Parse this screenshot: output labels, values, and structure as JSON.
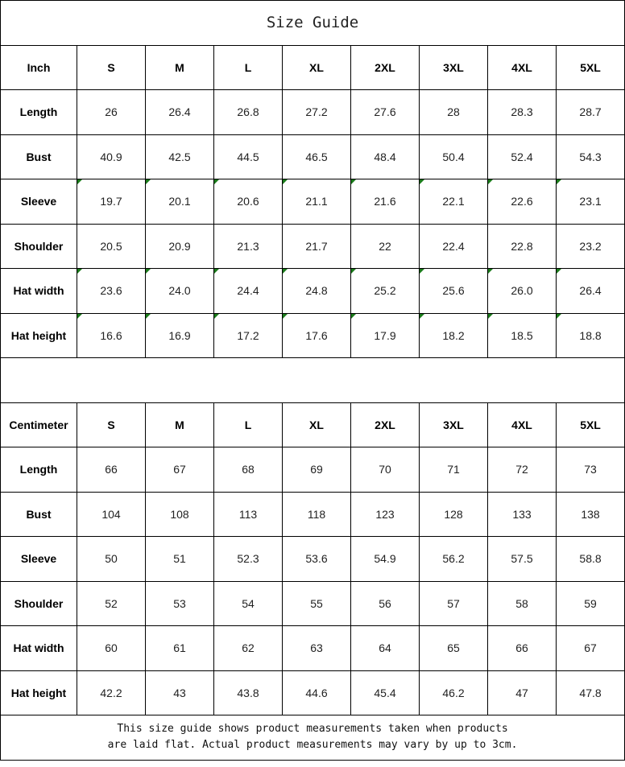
{
  "title": "Size Guide",
  "sizes": [
    "S",
    "M",
    "L",
    "XL",
    "2XL",
    "3XL",
    "4XL",
    "5XL"
  ],
  "flag_color": "#1a7a1a",
  "tables": [
    {
      "unit": "Inch",
      "flagged_rows": [
        "Sleeve",
        "Hat width",
        "Hat height"
      ],
      "rows": [
        {
          "label": "Length",
          "values": [
            "26",
            "26.4",
            "26.8",
            "27.2",
            "27.6",
            "28",
            "28.3",
            "28.7"
          ]
        },
        {
          "label": "Bust",
          "values": [
            "40.9",
            "42.5",
            "44.5",
            "46.5",
            "48.4",
            "50.4",
            "52.4",
            "54.3"
          ]
        },
        {
          "label": "Sleeve",
          "values": [
            "19.7",
            "20.1",
            "20.6",
            "21.1",
            "21.6",
            "22.1",
            "22.6",
            "23.1"
          ]
        },
        {
          "label": "Shoulder",
          "values": [
            "20.5",
            "20.9",
            "21.3",
            "21.7",
            "22",
            "22.4",
            "22.8",
            "23.2"
          ]
        },
        {
          "label": "Hat width",
          "values": [
            "23.6",
            "24.0",
            "24.4",
            "24.8",
            "25.2",
            "25.6",
            "26.0",
            "26.4"
          ]
        },
        {
          "label": "Hat height",
          "values": [
            "16.6",
            "16.9",
            "17.2",
            "17.6",
            "17.9",
            "18.2",
            "18.5",
            "18.8"
          ]
        }
      ]
    },
    {
      "unit": "Centimeter",
      "flagged_rows": [],
      "rows": [
        {
          "label": "Length",
          "values": [
            "66",
            "67",
            "68",
            "69",
            "70",
            "71",
            "72",
            "73"
          ]
        },
        {
          "label": "Bust",
          "values": [
            "104",
            "108",
            "113",
            "118",
            "123",
            "128",
            "133",
            "138"
          ]
        },
        {
          "label": "Sleeve",
          "values": [
            "50",
            "51",
            "52.3",
            "53.6",
            "54.9",
            "56.2",
            "57.5",
            "58.8"
          ]
        },
        {
          "label": "Shoulder",
          "values": [
            "52",
            "53",
            "54",
            "55",
            "56",
            "57",
            "58",
            "59"
          ]
        },
        {
          "label": "Hat width",
          "values": [
            "60",
            "61",
            "62",
            "63",
            "64",
            "65",
            "66",
            "67"
          ]
        },
        {
          "label": "Hat height",
          "values": [
            "42.2",
            "43",
            "43.8",
            "44.6",
            "45.4",
            "46.2",
            "47",
            "47.8"
          ]
        }
      ]
    }
  ],
  "note_line1": "This size guide shows product measurements taken when products",
  "note_line2": "are laid flat. Actual product measurements may vary by up to 3cm."
}
